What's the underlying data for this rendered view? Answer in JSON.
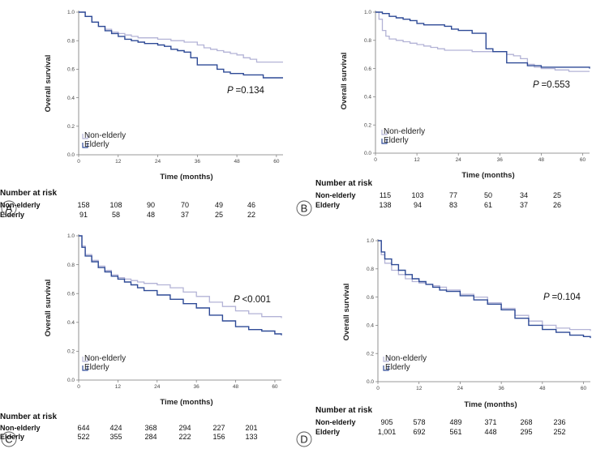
{
  "colors": {
    "non_elderly": "#b3b3d6",
    "elderly": "#2e4a96",
    "axis": "#777777",
    "text": "#222222"
  },
  "chart_data": [
    {
      "type": "line",
      "panel": "A",
      "xlabel": "Time (months)",
      "ylabel": "Overall survival",
      "xticks": [
        0,
        12,
        24,
        36,
        48,
        60
      ],
      "yticks": [
        "0.0",
        "0.2",
        "0.4",
        "0.6",
        "0.8",
        "1.0"
      ],
      "xlim": [
        0,
        62
      ],
      "ylim": [
        0,
        1
      ],
      "p_value": "=0.134",
      "p_label": "P",
      "legend": {
        "placement": "bottom-left",
        "entries": [
          "Non-elderly",
          "Elderly"
        ]
      },
      "series": [
        {
          "name": "Non-elderly",
          "points": [
            [
              0,
              1.0
            ],
            [
              2,
              0.97
            ],
            [
              4,
              0.93
            ],
            [
              6,
              0.9
            ],
            [
              8,
              0.88
            ],
            [
              10,
              0.86
            ],
            [
              12,
              0.85
            ],
            [
              14,
              0.84
            ],
            [
              16,
              0.83
            ],
            [
              18,
              0.82
            ],
            [
              20,
              0.82
            ],
            [
              24,
              0.81
            ],
            [
              28,
              0.8
            ],
            [
              32,
              0.79
            ],
            [
              36,
              0.77
            ],
            [
              38,
              0.75
            ],
            [
              40,
              0.74
            ],
            [
              42,
              0.73
            ],
            [
              44,
              0.72
            ],
            [
              46,
              0.71
            ],
            [
              48,
              0.7
            ],
            [
              50,
              0.68
            ],
            [
              52,
              0.67
            ],
            [
              54,
              0.65
            ],
            [
              58,
              0.65
            ],
            [
              62,
              0.65
            ]
          ]
        },
        {
          "name": "Elderly",
          "points": [
            [
              0,
              1.0
            ],
            [
              2,
              0.97
            ],
            [
              4,
              0.93
            ],
            [
              6,
              0.9
            ],
            [
              8,
              0.87
            ],
            [
              10,
              0.85
            ],
            [
              12,
              0.83
            ],
            [
              14,
              0.81
            ],
            [
              16,
              0.8
            ],
            [
              18,
              0.79
            ],
            [
              20,
              0.78
            ],
            [
              24,
              0.77
            ],
            [
              26,
              0.76
            ],
            [
              28,
              0.74
            ],
            [
              30,
              0.73
            ],
            [
              32,
              0.72
            ],
            [
              34,
              0.68
            ],
            [
              36,
              0.63
            ],
            [
              40,
              0.63
            ],
            [
              42,
              0.6
            ],
            [
              44,
              0.58
            ],
            [
              46,
              0.57
            ],
            [
              48,
              0.57
            ],
            [
              50,
              0.56
            ],
            [
              54,
              0.56
            ],
            [
              56,
              0.54
            ],
            [
              60,
              0.54
            ],
            [
              62,
              0.54
            ]
          ]
        }
      ],
      "risk_table": {
        "title": "Number at risk",
        "rows": [
          {
            "label": "Non-elderly",
            "values": [
              "158",
              "108",
              "90",
              "70",
              "49",
              "46"
            ]
          },
          {
            "label": "Elderly",
            "values": [
              "91",
              "58",
              "48",
              "37",
              "25",
              "22"
            ]
          }
        ]
      }
    },
    {
      "type": "line",
      "panel": "B",
      "xlabel": "Time (months)",
      "ylabel": "Overall survival",
      "xticks": [
        0,
        12,
        24,
        36,
        48,
        60
      ],
      "yticks": [
        "0.0",
        "0.2",
        "0.4",
        "0.6",
        "0.8",
        "1.0"
      ],
      "xlim": [
        0,
        62
      ],
      "ylim": [
        0,
        1
      ],
      "p_value": "=0.553",
      "p_label": "P",
      "legend": {
        "placement": "bottom-left",
        "entries": [
          "Non-elderly",
          "Elderly"
        ]
      },
      "series": [
        {
          "name": "Non-elderly",
          "points": [
            [
              0,
              1.0
            ],
            [
              1,
              0.95
            ],
            [
              2,
              0.87
            ],
            [
              3,
              0.83
            ],
            [
              4,
              0.81
            ],
            [
              6,
              0.8
            ],
            [
              8,
              0.79
            ],
            [
              10,
              0.78
            ],
            [
              12,
              0.77
            ],
            [
              14,
              0.76
            ],
            [
              16,
              0.75
            ],
            [
              18,
              0.74
            ],
            [
              20,
              0.73
            ],
            [
              24,
              0.73
            ],
            [
              28,
              0.72
            ],
            [
              32,
              0.72
            ],
            [
              36,
              0.72
            ],
            [
              38,
              0.7
            ],
            [
              40,
              0.69
            ],
            [
              42,
              0.67
            ],
            [
              44,
              0.63
            ],
            [
              46,
              0.61
            ],
            [
              48,
              0.6
            ],
            [
              52,
              0.59
            ],
            [
              56,
              0.58
            ],
            [
              62,
              0.58
            ]
          ]
        },
        {
          "name": "Elderly",
          "points": [
            [
              0,
              1.0
            ],
            [
              2,
              0.99
            ],
            [
              4,
              0.97
            ],
            [
              6,
              0.96
            ],
            [
              8,
              0.95
            ],
            [
              10,
              0.94
            ],
            [
              12,
              0.92
            ],
            [
              14,
              0.91
            ],
            [
              18,
              0.91
            ],
            [
              20,
              0.9
            ],
            [
              22,
              0.88
            ],
            [
              24,
              0.87
            ],
            [
              26,
              0.87
            ],
            [
              28,
              0.85
            ],
            [
              30,
              0.85
            ],
            [
              32,
              0.74
            ],
            [
              34,
              0.72
            ],
            [
              36,
              0.72
            ],
            [
              38,
              0.64
            ],
            [
              42,
              0.64
            ],
            [
              44,
              0.62
            ],
            [
              46,
              0.62
            ],
            [
              48,
              0.61
            ],
            [
              60,
              0.61
            ],
            [
              62,
              0.6
            ]
          ]
        }
      ],
      "risk_table": {
        "title": "Number at risk",
        "rows": [
          {
            "label": "Non-elderly",
            "values": [
              "115",
              "103",
              "77",
              "50",
              "34",
              "25"
            ]
          },
          {
            "label": "Elderly",
            "values": [
              "138",
              "94",
              "83",
              "61",
              "37",
              "26"
            ]
          }
        ]
      }
    },
    {
      "type": "line",
      "panel": "C",
      "xlabel": "Time (months)",
      "ylabel": "Overall survival",
      "xticks": [
        0,
        12,
        24,
        36,
        48,
        60
      ],
      "yticks": [
        "0.0",
        "0.2",
        "0.4",
        "0.6",
        "0.8",
        "1.0"
      ],
      "xlim": [
        0,
        62
      ],
      "ylim": [
        0,
        1
      ],
      "p_value": "<0.001",
      "p_label": "P",
      "legend": {
        "placement": "bottom-left",
        "entries": [
          "Non-elderly",
          "Elderly"
        ]
      },
      "series": [
        {
          "name": "Non-elderly",
          "points": [
            [
              0,
              1.0
            ],
            [
              1,
              0.93
            ],
            [
              2,
              0.87
            ],
            [
              4,
              0.83
            ],
            [
              6,
              0.79
            ],
            [
              8,
              0.76
            ],
            [
              10,
              0.73
            ],
            [
              12,
              0.71
            ],
            [
              14,
              0.7
            ],
            [
              16,
              0.69
            ],
            [
              18,
              0.68
            ],
            [
              20,
              0.67
            ],
            [
              24,
              0.66
            ],
            [
              28,
              0.64
            ],
            [
              32,
              0.61
            ],
            [
              36,
              0.58
            ],
            [
              40,
              0.54
            ],
            [
              44,
              0.51
            ],
            [
              48,
              0.48
            ],
            [
              52,
              0.46
            ],
            [
              56,
              0.44
            ],
            [
              60,
              0.44
            ],
            [
              62,
              0.43
            ]
          ]
        },
        {
          "name": "Elderly",
          "points": [
            [
              0,
              1.0
            ],
            [
              1,
              0.92
            ],
            [
              2,
              0.86
            ],
            [
              4,
              0.82
            ],
            [
              6,
              0.78
            ],
            [
              8,
              0.75
            ],
            [
              10,
              0.72
            ],
            [
              12,
              0.7
            ],
            [
              14,
              0.68
            ],
            [
              16,
              0.66
            ],
            [
              18,
              0.64
            ],
            [
              20,
              0.62
            ],
            [
              24,
              0.59
            ],
            [
              28,
              0.56
            ],
            [
              32,
              0.53
            ],
            [
              36,
              0.5
            ],
            [
              40,
              0.45
            ],
            [
              44,
              0.41
            ],
            [
              48,
              0.37
            ],
            [
              52,
              0.35
            ],
            [
              56,
              0.34
            ],
            [
              60,
              0.32
            ],
            [
              62,
              0.31
            ]
          ]
        }
      ],
      "risk_table": {
        "title": "Number at risk",
        "rows": [
          {
            "label": "Non-elderly",
            "values": [
              "644",
              "424",
              "368",
              "294",
              "227",
              "201"
            ]
          },
          {
            "label": "Elderly",
            "values": [
              "522",
              "355",
              "284",
              "222",
              "156",
              "133"
            ]
          }
        ]
      }
    },
    {
      "type": "line",
      "panel": "D",
      "xlabel": "Time (months)",
      "ylabel": "Overall survival",
      "xticks": [
        0,
        12,
        24,
        36,
        48,
        60
      ],
      "yticks": [
        "0.0",
        "0.2",
        "0.4",
        "0.6",
        "0.8",
        "1.0"
      ],
      "xlim": [
        0,
        62
      ],
      "ylim": [
        0,
        1
      ],
      "p_value": "=0.104",
      "p_label": "P",
      "legend": {
        "placement": "bottom-left",
        "entries": [
          "Non-elderly",
          "Elderly"
        ]
      },
      "series": [
        {
          "name": "Non-elderly",
          "points": [
            [
              0,
              1.0
            ],
            [
              1,
              0.9
            ],
            [
              2,
              0.84
            ],
            [
              4,
              0.79
            ],
            [
              6,
              0.76
            ],
            [
              8,
              0.73
            ],
            [
              10,
              0.71
            ],
            [
              12,
              0.7
            ],
            [
              14,
              0.69
            ],
            [
              16,
              0.68
            ],
            [
              18,
              0.67
            ],
            [
              20,
              0.65
            ],
            [
              24,
              0.62
            ],
            [
              28,
              0.6
            ],
            [
              32,
              0.56
            ],
            [
              36,
              0.52
            ],
            [
              40,
              0.47
            ],
            [
              44,
              0.43
            ],
            [
              48,
              0.4
            ],
            [
              52,
              0.38
            ],
            [
              56,
              0.37
            ],
            [
              60,
              0.37
            ],
            [
              62,
              0.36
            ]
          ]
        },
        {
          "name": "Elderly",
          "points": [
            [
              0,
              1.0
            ],
            [
              1,
              0.92
            ],
            [
              2,
              0.87
            ],
            [
              4,
              0.83
            ],
            [
              6,
              0.79
            ],
            [
              8,
              0.76
            ],
            [
              10,
              0.73
            ],
            [
              12,
              0.71
            ],
            [
              14,
              0.69
            ],
            [
              16,
              0.67
            ],
            [
              18,
              0.65
            ],
            [
              20,
              0.64
            ],
            [
              24,
              0.61
            ],
            [
              28,
              0.58
            ],
            [
              32,
              0.55
            ],
            [
              36,
              0.51
            ],
            [
              40,
              0.45
            ],
            [
              44,
              0.4
            ],
            [
              48,
              0.37
            ],
            [
              52,
              0.35
            ],
            [
              56,
              0.33
            ],
            [
              60,
              0.32
            ],
            [
              62,
              0.31
            ]
          ]
        }
      ],
      "risk_table": {
        "title": "Number at risk",
        "rows": [
          {
            "label": "Non-elderly",
            "values": [
              "905",
              "578",
              "489",
              "371",
              "268",
              "236"
            ]
          },
          {
            "label": "Elderly",
            "values": [
              "1,001",
              "692",
              "561",
              "448",
              "295",
              "252"
            ]
          }
        ]
      }
    }
  ]
}
